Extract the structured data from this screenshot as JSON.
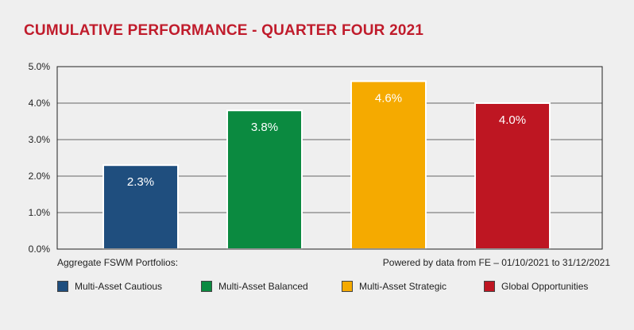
{
  "title": "CUMULATIVE PERFORMANCE - QUARTER FOUR 2021",
  "footer": {
    "left": "Aggregate FSWM Portfolios:",
    "right": "Powered by data from FE – 01/10/2021 to 31/12/2021"
  },
  "chart_data": {
    "type": "bar",
    "title": "CUMULATIVE PERFORMANCE - QUARTER FOUR 2021",
    "categories": [
      "Multi-Asset Cautious",
      "Multi-Asset Balanced",
      "Multi-Asset Strategic",
      "Global Opportunities"
    ],
    "values": [
      2.3,
      3.8,
      4.6,
      4.0
    ],
    "data_labels": [
      "2.3%",
      "3.8%",
      "4.6%",
      "4.0%"
    ],
    "colors": [
      "#1f4e7e",
      "#0b8a40",
      "#f5aa00",
      "#be1622"
    ],
    "ylim": [
      0,
      5
    ],
    "yticks": [
      "0.0%",
      "1.0%",
      "2.0%",
      "3.0%",
      "4.0%",
      "5.0%"
    ],
    "grid": true,
    "legend_position": "bottom"
  }
}
